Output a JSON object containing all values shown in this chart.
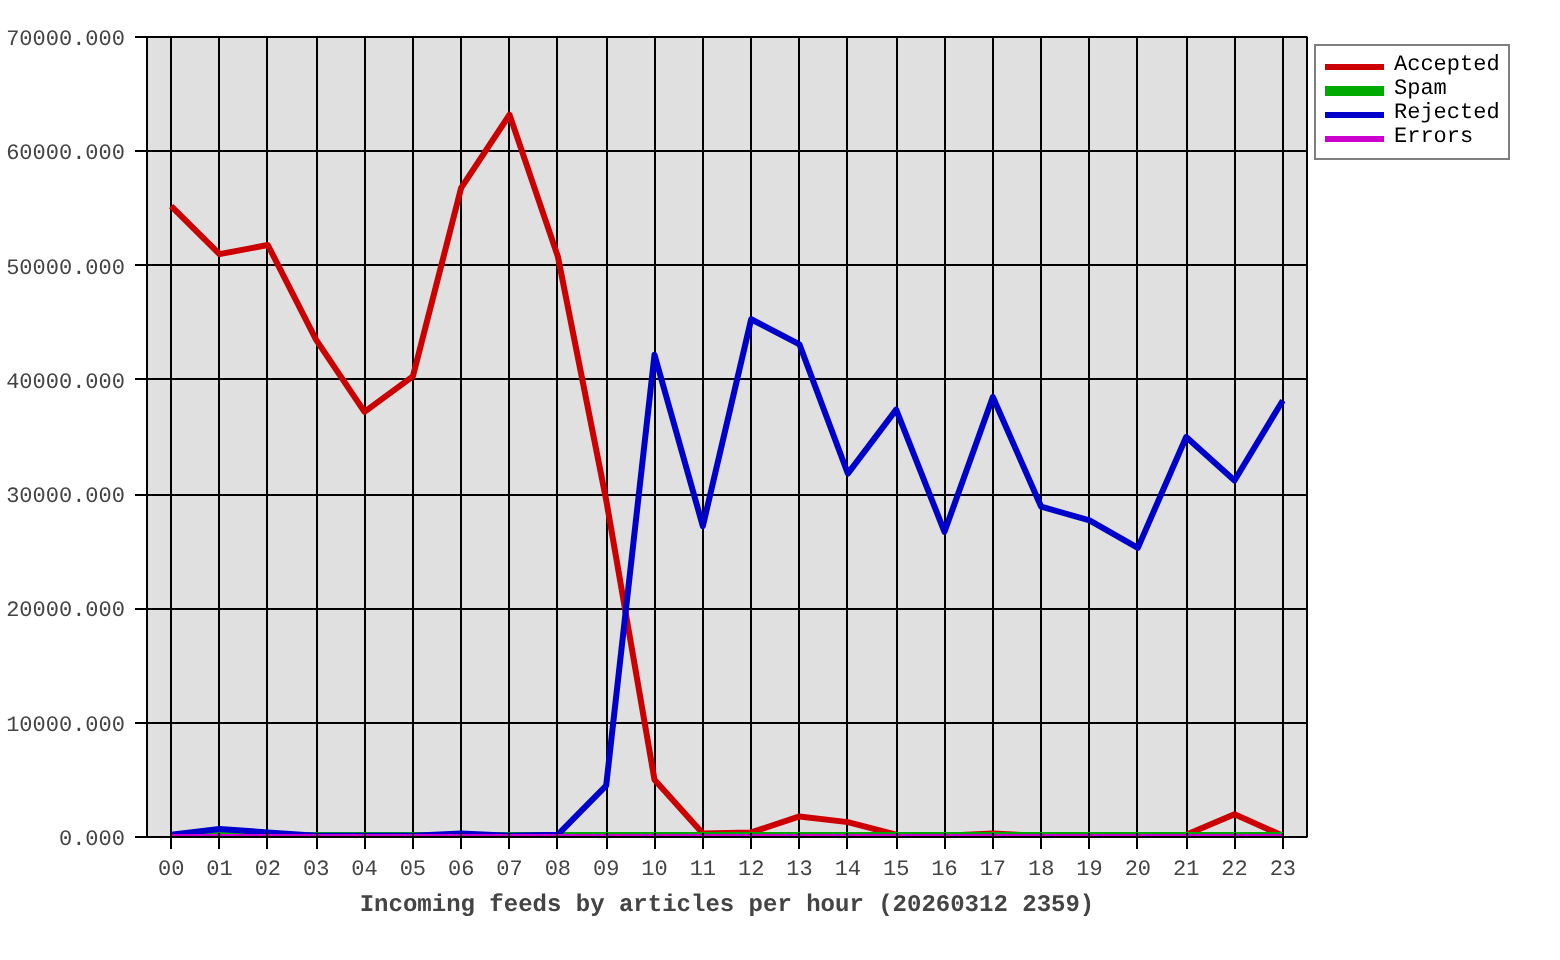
{
  "chart_data": {
    "type": "line",
    "xlabel": "Incoming feeds by articles per hour (20260312 2359)",
    "categories": [
      "00",
      "01",
      "02",
      "03",
      "04",
      "05",
      "06",
      "07",
      "08",
      "09",
      "10",
      "11",
      "12",
      "13",
      "14",
      "15",
      "16",
      "17",
      "18",
      "19",
      "20",
      "21",
      "22",
      "23"
    ],
    "series": [
      {
        "name": "Accepted",
        "color": "#cc0000",
        "values": [
          55200,
          51000,
          51800,
          43500,
          37200,
          40300,
          56800,
          63200,
          50800,
          29500,
          5000,
          300,
          400,
          1800,
          1300,
          200,
          100,
          300,
          100,
          100,
          100,
          200,
          2000,
          100
        ]
      },
      {
        "name": "Spam",
        "color": "#00aa00",
        "values": [
          0,
          0,
          0,
          0,
          0,
          0,
          0,
          0,
          0,
          0,
          0,
          0,
          0,
          0,
          0,
          0,
          0,
          0,
          0,
          0,
          0,
          0,
          0,
          0
        ]
      },
      {
        "name": "Rejected",
        "color": "#0000cc",
        "values": [
          200,
          700,
          400,
          100,
          100,
          100,
          300,
          100,
          200,
          4500,
          42200,
          27200,
          45300,
          43100,
          31800,
          37400,
          26700,
          38500,
          28900,
          27700,
          25300,
          35000,
          31200,
          38200
        ]
      },
      {
        "name": "Errors",
        "color": "#cc00cc",
        "values": [
          0,
          0,
          0,
          0,
          0,
          0,
          0,
          0,
          0,
          0,
          0,
          0,
          0,
          0,
          0,
          0,
          0,
          0,
          0,
          0,
          0,
          0,
          0,
          0
        ]
      }
    ],
    "ylim": [
      0,
      70000
    ],
    "yticks": [
      {
        "value": 0,
        "label": "0.000"
      },
      {
        "value": 10000,
        "label": "10000.000"
      },
      {
        "value": 20000,
        "label": "20000.000"
      },
      {
        "value": 30000,
        "label": "30000.000"
      },
      {
        "value": 40000,
        "label": "40000.000"
      },
      {
        "value": 50000,
        "label": "50000.000"
      },
      {
        "value": 60000,
        "label": "60000.000"
      },
      {
        "value": 70000,
        "label": "70000.000"
      }
    ],
    "grid": true,
    "legend": "top right",
    "line_style": "solid"
  }
}
